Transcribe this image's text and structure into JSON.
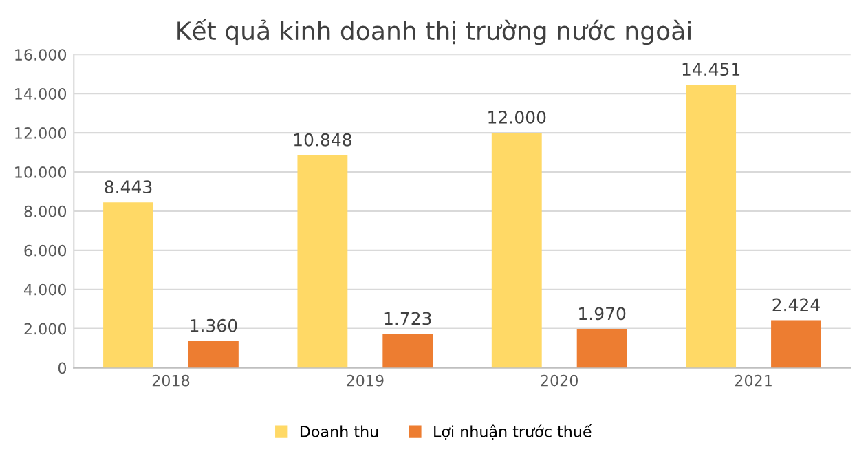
{
  "chart_data": {
    "type": "bar",
    "title": "Kết quả kinh doanh thị trường nước ngoài",
    "categories": [
      "2018",
      "2019",
      "2020",
      "2021"
    ],
    "series": [
      {
        "name": "Doanh thu",
        "color": "#ffd966",
        "values": [
          8443,
          10848,
          12000,
          14451
        ],
        "value_labels": [
          "8.443",
          "10.848",
          "12.000",
          "14.451"
        ]
      },
      {
        "name": "Lợi nhuận trước thuế",
        "color": "#ed7d31",
        "values": [
          1360,
          1723,
          1970,
          2424
        ],
        "value_labels": [
          "1.360",
          "1.723",
          "1.970",
          "2.424"
        ]
      }
    ],
    "ylim": [
      0,
      16000
    ],
    "yticks": [
      0,
      {
        "value": 2000,
        "label": "2.000"
      },
      {
        "value": 4000,
        "label": "4.000"
      },
      {
        "value": 6000,
        "label": "6.000"
      },
      {
        "value": 8000,
        "label": "8.000"
      },
      {
        "value": 10000,
        "label": "10.000"
      },
      {
        "value": 12000,
        "label": "12.000"
      },
      {
        "value": 14000,
        "label": "14.000"
      },
      {
        "value": 16000,
        "label": "16.000"
      }
    ],
    "grid": "y",
    "legend": "bottom"
  }
}
